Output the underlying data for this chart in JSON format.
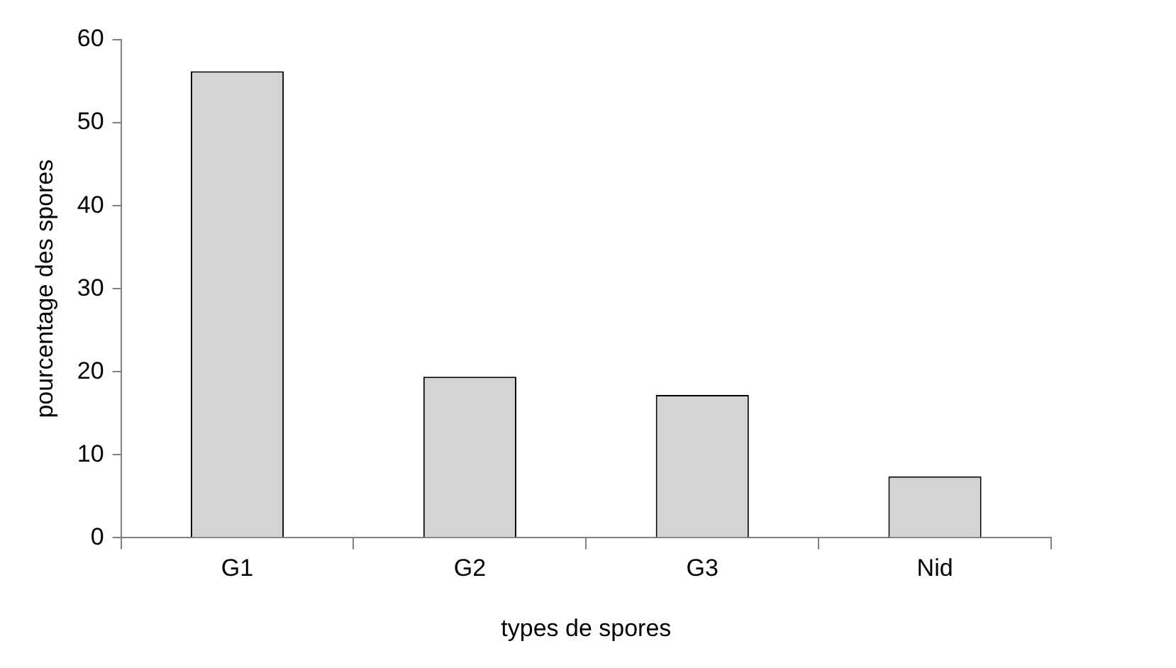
{
  "chart_data": {
    "type": "bar",
    "xlabel": "types de spores",
    "ylabel": "pourcentage des spores",
    "categories": [
      "G1",
      "G2",
      "G3",
      "Nid"
    ],
    "values": [
      56.2,
      19.4,
      17.2,
      7.4
    ],
    "color": "#d4d4d4",
    "ylim": [
      0,
      60
    ],
    "yticks": [
      0,
      10,
      20,
      30,
      40,
      50,
      60
    ],
    "grid": false,
    "legend": false
  }
}
